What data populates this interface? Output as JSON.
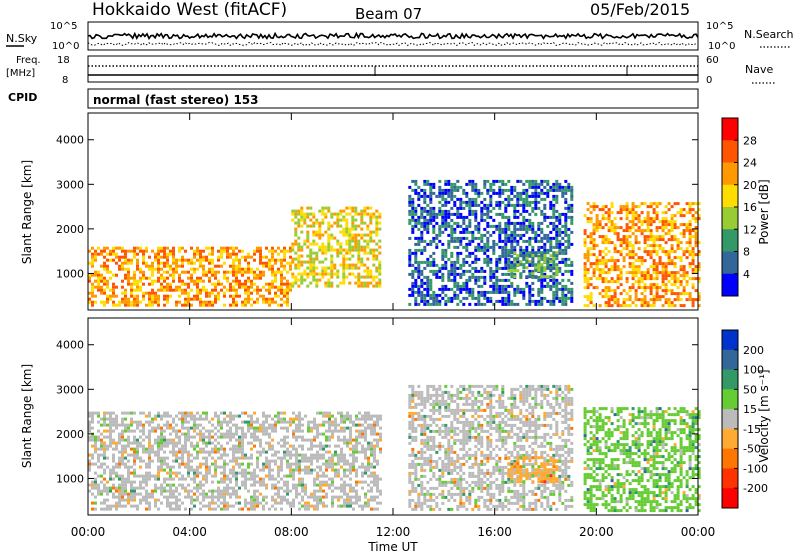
{
  "header": {
    "station": "Hokkaido West (fitACF)",
    "beam": "Beam 07",
    "date": "05/Feb/2015"
  },
  "params": {
    "nsky_label": "N.Sky",
    "nsearch_label": "N.Search",
    "noise_ticks": [
      "10^5",
      "10^0"
    ],
    "noise_ticks_right": [
      "10^5",
      "10^0"
    ],
    "freq_label": "Freq.",
    "freq_unit": "[MHz]",
    "freq_ticks": [
      "18",
      "8"
    ],
    "nave_label": "Nave",
    "nave_ticks": [
      "60",
      "0"
    ],
    "cpid_label": "CPID",
    "cpid_value": "normal (fast stereo) 153"
  },
  "axes": {
    "ylabel": "Slant Range [km]",
    "yticks": [
      "4000",
      "3000",
      "2000",
      "1000"
    ],
    "xlabel": "Time UT",
    "xticks": [
      "00:00",
      "04:00",
      "08:00",
      "12:00",
      "16:00",
      "20:00",
      "00:00"
    ]
  },
  "colorbars": {
    "power": {
      "label": "Power [dB]",
      "ticks": [
        "28",
        "24",
        "20",
        "16",
        "12",
        "8",
        "4"
      ],
      "colors": [
        "#ff0000",
        "#ff5500",
        "#ff9900",
        "#ffdd00",
        "#99cc33",
        "#339966",
        "#336699",
        "#0000ff"
      ]
    },
    "velocity": {
      "label": "Velocity [m s⁻¹]",
      "ticks": [
        "200",
        "100",
        "50",
        "15",
        "-15",
        "-50",
        "-100",
        "-200"
      ],
      "colors": [
        "#0033cc",
        "#336699",
        "#339966",
        "#66cc33",
        "#bbbbbb",
        "#ffaa33",
        "#ff7700",
        "#ff3300",
        "#ff0000"
      ]
    }
  },
  "chart_data": [
    {
      "type": "heatmap",
      "name": "Power",
      "x": [
        "00:00",
        "04:00",
        "08:00",
        "12:00",
        "16:00",
        "20:00",
        "00:00"
      ],
      "xlim_hours": [
        0,
        24
      ],
      "ylim_km": [
        180,
        4600
      ],
      "colorbar_range_db": [
        0,
        30
      ],
      "echo_regions": [
        {
          "t_start": 0,
          "t_end": 8,
          "range_low_km": 300,
          "range_high_km": 1600,
          "power_db": 22
        },
        {
          "t_start": 8,
          "t_end": 11.5,
          "range_low_km": 700,
          "range_high_km": 2500,
          "power_db": 18
        },
        {
          "t_start": 12.6,
          "t_end": 19,
          "range_low_km": 300,
          "range_high_km": 3100,
          "power_db": 6
        },
        {
          "t_start": 16.5,
          "t_end": 18.5,
          "range_low_km": 900,
          "range_high_km": 1500,
          "power_db": 10
        },
        {
          "t_start": 19.5,
          "t_end": 24,
          "range_low_km": 300,
          "range_high_km": 2600,
          "power_db": 20
        }
      ]
    },
    {
      "type": "heatmap",
      "name": "Velocity",
      "x": [
        "00:00",
        "04:00",
        "08:00",
        "12:00",
        "16:00",
        "20:00",
        "00:00"
      ],
      "xlim_hours": [
        0,
        24
      ],
      "ylim_km": [
        180,
        4600
      ],
      "colorbar_range_ms": [
        -250,
        250
      ],
      "echo_regions": [
        {
          "t_start": 0,
          "t_end": 11.5,
          "range_low_km": 300,
          "range_high_km": 2500,
          "velocity_ms": 0
        },
        {
          "t_start": 12.6,
          "t_end": 19,
          "range_low_km": 300,
          "range_high_km": 3100,
          "velocity_ms": 0
        },
        {
          "t_start": 16.5,
          "t_end": 18.5,
          "range_low_km": 900,
          "range_high_km": 1500,
          "velocity_ms": -80
        },
        {
          "t_start": 19.5,
          "t_end": 24,
          "range_low_km": 300,
          "range_high_km": 2600,
          "velocity_ms": 40
        }
      ]
    }
  ]
}
